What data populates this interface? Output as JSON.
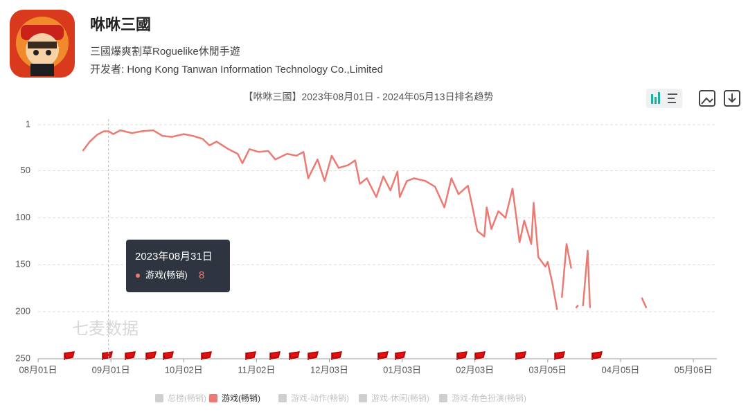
{
  "header": {
    "title": "咻咻三國",
    "subtitle": "三國爆爽割草Roguelike休閒手遊",
    "developer": "开发者: Hong Kong Tanwan Information Technology Co.,Limited"
  },
  "chart_data": {
    "type": "line",
    "title": "【咻咻三國】2023年08月01日 - 2024年05月13日排名趋势",
    "watermark": "七麦数据",
    "y_inverted": true,
    "grid": true,
    "xlim": [
      "2023-08-01",
      "2024-05-16"
    ],
    "xticks": [
      {
        "value": "2023-08-01",
        "label": "08月01日"
      },
      {
        "value": "2023-09-01",
        "label": "09月01日"
      },
      {
        "value": "2023-10-02",
        "label": "10月02日"
      },
      {
        "value": "2023-11-02",
        "label": "11月02日"
      },
      {
        "value": "2023-12-03",
        "label": "12月03日"
      },
      {
        "value": "2024-01-03",
        "label": "01月03日"
      },
      {
        "value": "2024-02-03",
        "label": "02月03日"
      },
      {
        "value": "2024-03-05",
        "label": "03月05日"
      },
      {
        "value": "2024-04-05",
        "label": "04月05日"
      },
      {
        "value": "2024-05-06",
        "label": "05月06日"
      }
    ],
    "ylim": [
      1,
      250
    ],
    "yticks": [
      1,
      50,
      100,
      150,
      200,
      250
    ],
    "x": [
      "2023-08-20",
      "2023-08-23",
      "2023-08-26",
      "2023-08-29",
      "2023-08-31",
      "2023-09-02",
      "2023-09-05",
      "2023-09-10",
      "2023-09-14",
      "2023-09-19",
      "2023-09-23",
      "2023-09-27",
      "2023-10-02",
      "2023-10-06",
      "2023-10-10",
      "2023-10-13",
      "2023-10-16",
      "2023-10-21",
      "2023-10-25",
      "2023-10-27",
      "2023-10-30",
      "2023-11-03",
      "2023-11-07",
      "2023-11-10",
      "2023-11-15",
      "2023-11-19",
      "2023-11-22",
      "2023-11-24",
      "2023-11-28",
      "2023-12-01",
      "2023-12-04",
      "2023-12-07",
      "2023-12-11",
      "2023-12-14",
      "2023-12-16",
      "2023-12-19",
      "2023-12-23",
      "2023-12-26",
      "2023-12-29",
      "2024-01-01",
      "2024-01-02",
      "2024-01-05",
      "2024-01-08",
      "2024-01-13",
      "2024-01-17",
      "2024-01-21",
      "2024-01-24",
      "2024-01-27",
      "2024-01-31",
      "2024-02-02",
      "2024-02-04",
      "2024-02-07",
      "2024-02-08",
      "2024-02-10",
      "2024-02-13",
      "2024-02-16",
      "2024-02-19",
      "2024-02-22",
      "2024-02-24",
      "2024-02-27",
      "2024-02-28",
      "2024-03-01",
      "2024-03-04",
      "2024-03-05",
      "2024-03-07",
      "2024-03-09",
      "2024-03-10",
      "2024-03-11",
      "2024-03-13",
      "2024-03-15",
      "2024-03-16",
      "2024-03-17",
      "2024-03-18",
      "2024-03-19",
      "2024-03-20",
      "2024-03-22",
      "2024-03-23",
      "2024-03-25",
      "2024-04-14",
      "2024-04-16"
    ],
    "series": [
      {
        "name": "游戏(畅销)",
        "color": "#ec7a72",
        "values": [
          29,
          19,
          12,
          8,
          8,
          11,
          7,
          10,
          8,
          7,
          13,
          14,
          11,
          13,
          16,
          23,
          19,
          27,
          32,
          42,
          27,
          30,
          29,
          38,
          32,
          34,
          30,
          58,
          38,
          61,
          34,
          47,
          44,
          39,
          64,
          58,
          78,
          56,
          71,
          51,
          78,
          61,
          58,
          61,
          67,
          89,
          58,
          75,
          66,
          89,
          114,
          120,
          89,
          112,
          93,
          100,
          69,
          126,
          103,
          128,
          84,
          142,
          152,
          147,
          170,
          198,
          null,
          185,
          128,
          154,
          null,
          196,
          193,
          null,
          194,
          135,
          196,
          null,
          185,
          196
        ]
      }
    ],
    "hidden_series": [
      "总榜(畅销)",
      "游戏-动作(畅销)",
      "游戏-休闲(畅销)",
      "游戏-角色扮演(畅销)"
    ],
    "tooltip": {
      "date": "2023年08月31日",
      "series": "游戏(畅销)",
      "value": 8
    }
  }
}
